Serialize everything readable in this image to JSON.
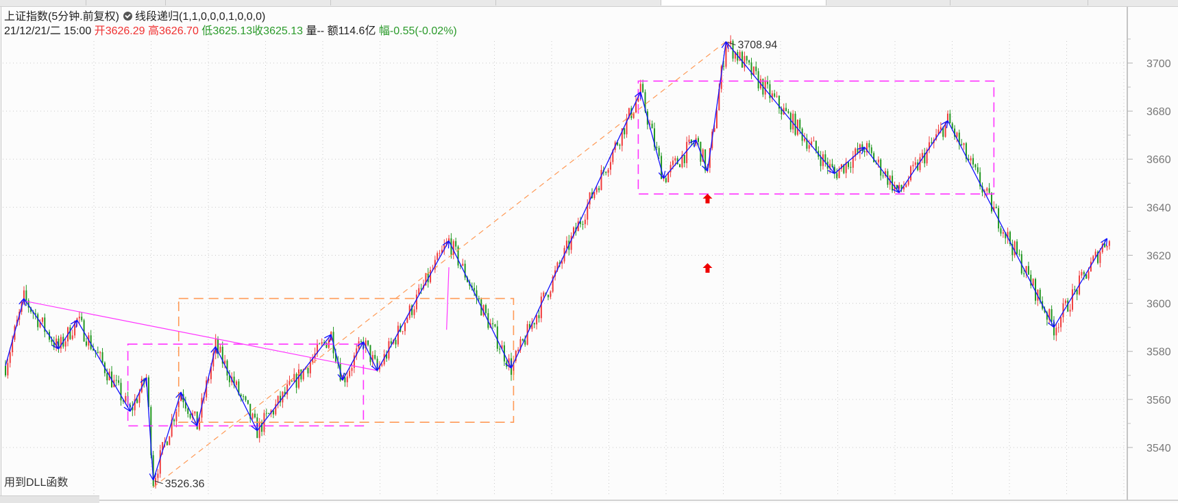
{
  "header": {
    "instrument": "上证指数(5分钟.前复权)",
    "indicator": "线段递归(1,1,0,0,0,1,0,0,0)",
    "datetime": "21/12/21/二 15:00",
    "open_label": "开",
    "open": "3626.29",
    "high_label": "高",
    "high": "3626.70",
    "low_label": "低",
    "low": "3625.13",
    "close_label": "收",
    "close": "3625.13",
    "volume": "量--",
    "amount": "额114.6亿",
    "change_label": "幅",
    "change": "-0.55(-0.02%)"
  },
  "note": "用到DLL函数",
  "colors": {
    "up": "#f03a3a",
    "down": "#1f961f",
    "segment": "#1010ff",
    "pivot_box": "#ff33ff",
    "trend_box": "#ff9955",
    "signal": "#ee0000"
  },
  "chart_data": {
    "type": "candlestick",
    "title": "",
    "ylim": [
      3520,
      3716
    ],
    "yticks": [
      3540,
      3560,
      3580,
      3600,
      3620,
      3640,
      3660,
      3680,
      3700
    ],
    "grid": true,
    "bars": 479,
    "zigzag_pivots": [
      {
        "bar": 0,
        "price": 3574
      },
      {
        "bar": 8,
        "price": 3602
      },
      {
        "bar": 23,
        "price": 3581
      },
      {
        "bar": 31,
        "price": 3593
      },
      {
        "bar": 54,
        "price": 3555
      },
      {
        "bar": 61,
        "price": 3569
      },
      {
        "bar": 64,
        "price": 3526.36
      },
      {
        "bar": 76,
        "price": 3563
      },
      {
        "bar": 83,
        "price": 3549
      },
      {
        "bar": 91,
        "price": 3582
      },
      {
        "bar": 109,
        "price": 3547
      },
      {
        "bar": 141,
        "price": 3587
      },
      {
        "bar": 146,
        "price": 3568
      },
      {
        "bar": 155,
        "price": 3584
      },
      {
        "bar": 161,
        "price": 3572
      },
      {
        "bar": 192,
        "price": 3626
      },
      {
        "bar": 219,
        "price": 3573
      },
      {
        "bar": 275,
        "price": 3688
      },
      {
        "bar": 285,
        "price": 3652
      },
      {
        "bar": 299,
        "price": 3668
      },
      {
        "bar": 304,
        "price": 3655
      },
      {
        "bar": 312,
        "price": 3708.94
      },
      {
        "bar": 359,
        "price": 3654
      },
      {
        "bar": 372,
        "price": 3665
      },
      {
        "bar": 387,
        "price": 3646
      },
      {
        "bar": 408,
        "price": 3676
      },
      {
        "bar": 454,
        "price": 3590
      },
      {
        "bar": 477,
        "price": 3627
      },
      {
        "bar": 478,
        "price": 3625.13
      }
    ],
    "annotations": [
      {
        "bar": 312,
        "price": 3708.94,
        "text": "3708.94"
      },
      {
        "bar": 64,
        "price": 3526.36,
        "text": "3526.36"
      }
    ],
    "pivot_boxes": [
      {
        "bar_from": 53,
        "bar_to": 155,
        "low": 3549,
        "high": 3583,
        "style": "magenta-dashed"
      },
      {
        "bar_from": 274,
        "bar_to": 428,
        "low": 3645.5,
        "high": 3692.5,
        "style": "magenta-dashed"
      },
      {
        "bar_from": 75,
        "bar_to": 220,
        "low": 3550.5,
        "high": 3602,
        "style": "orange-dashed"
      }
    ],
    "trend_lines": [
      {
        "from": {
          "bar": 8,
          "price": 3601
        },
        "to": {
          "bar": 161,
          "price": 3572
        },
        "style": "magenta"
      },
      {
        "from": {
          "bar": 64,
          "price": 3523.5
        },
        "to": {
          "bar": 312,
          "price": 3709
        },
        "style": "orange-dashed"
      },
      {
        "from": {
          "bar": 192,
          "price": 3615
        },
        "to": {
          "bar": 191,
          "price": 3589
        },
        "style": "magenta-arrow"
      }
    ],
    "signals": [
      {
        "bar": 304,
        "price": 3643.6,
        "type": "up-arrow"
      },
      {
        "bar": 304,
        "price": 3614.7,
        "type": "up-arrow"
      }
    ]
  }
}
